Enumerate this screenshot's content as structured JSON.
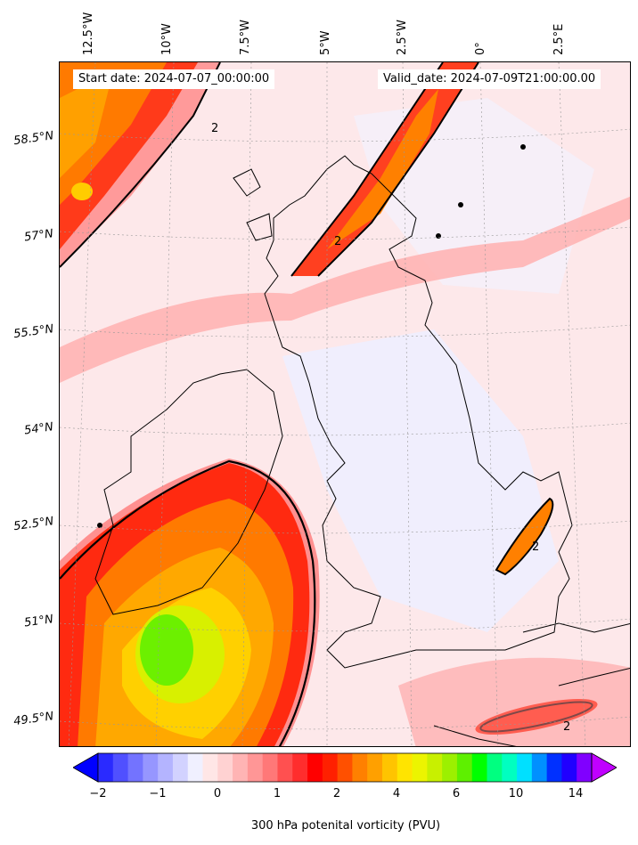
{
  "header": {
    "start_date": "Start date: 2024-07-07_00:00:00",
    "valid_date": "Valid_date: 2024-07-09T21:00:00.00"
  },
  "map": {
    "lon_labels": [
      "12.5°W",
      "10°W",
      "7.5°W",
      "5°W",
      "2.5°W",
      "0°",
      "2.5°E"
    ],
    "lat_labels": [
      "58.5°N",
      "57°N",
      "55.5°N",
      "54°N",
      "52.5°N",
      "51°N",
      "49.5°N"
    ],
    "contour_label": "2"
  },
  "colorbar": {
    "ticks": [
      "−2",
      "−1",
      "0",
      "1",
      "2",
      "4",
      "6",
      "10",
      "14"
    ],
    "label": "300 hPa potenital vorticity (PVU)",
    "colors": [
      "#0000ff",
      "#2a2aff",
      "#5050ff",
      "#7373ff",
      "#9696ff",
      "#b4b4ff",
      "#d2d2ff",
      "#f0f0ff",
      "#ffe6e6",
      "#ffd2d2",
      "#ffb4b4",
      "#ff9696",
      "#ff7878",
      "#ff5050",
      "#ff2d2d",
      "#ff0000",
      "#ff2000",
      "#ff5000",
      "#ff8000",
      "#ffa000",
      "#ffc400",
      "#ffe400",
      "#ecf400",
      "#c8f000",
      "#9cf000",
      "#5ef000",
      "#00ff00",
      "#00ff80",
      "#00ffc0",
      "#00e0ff",
      "#0090ff",
      "#0030ff",
      "#2000ff",
      "#8000ff",
      "#c000ff"
    ]
  }
}
